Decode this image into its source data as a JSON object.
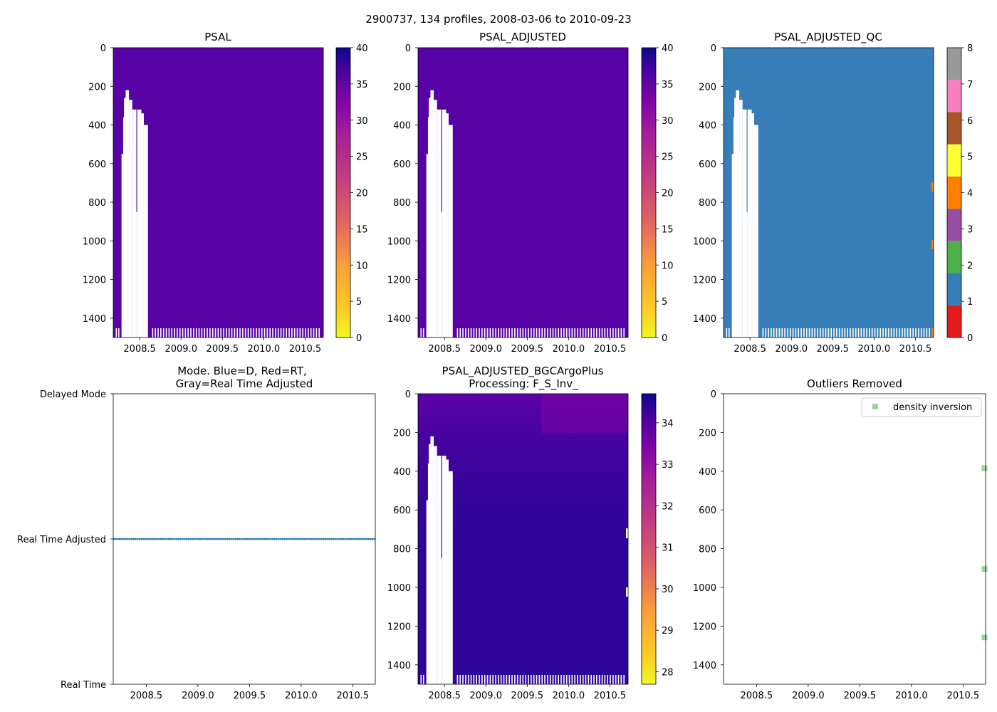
{
  "suptitle": "2900737, 134 profiles, 2008-03-06 to 2010-09-23",
  "chart_data": [
    {
      "id": "psal",
      "type": "heatmap",
      "title": "PSAL",
      "x_ticks": [
        "2008.5",
        "2009.0",
        "2009.5",
        "2010.0",
        "2010.5"
      ],
      "y_ticks": [
        "0",
        "200",
        "400",
        "600",
        "800",
        "1000",
        "1200",
        "1400"
      ],
      "colorbar": {
        "colormap": "plasma_r",
        "ticks": [
          "0",
          "5",
          "10",
          "15",
          "20",
          "25",
          "30",
          "35",
          "40"
        ],
        "vmin": 0,
        "vmax": 40
      },
      "dominant_value": 34.5
    },
    {
      "id": "psal_adjusted",
      "type": "heatmap",
      "title": "PSAL_ADJUSTED",
      "x_ticks": [
        "2008.5",
        "2009.0",
        "2009.5",
        "2010.0",
        "2010.5"
      ],
      "y_ticks": [
        "0",
        "200",
        "400",
        "600",
        "800",
        "1000",
        "1200",
        "1400"
      ],
      "colorbar": {
        "colormap": "plasma_r",
        "ticks": [
          "0",
          "5",
          "10",
          "15",
          "20",
          "25",
          "30",
          "35",
          "40"
        ],
        "vmin": 0,
        "vmax": 40
      },
      "dominant_value": 34.5
    },
    {
      "id": "psal_adjusted_qc",
      "type": "heatmap",
      "title": "PSAL_ADJUSTED_QC",
      "x_ticks": [
        "2008.5",
        "2009.0",
        "2009.5",
        "2010.0",
        "2010.5"
      ],
      "y_ticks": [
        "0",
        "200",
        "400",
        "600",
        "800",
        "1000",
        "1200",
        "1400"
      ],
      "colorbar": {
        "ticks": [
          "0",
          "1",
          "2",
          "3",
          "4",
          "5",
          "6",
          "7",
          "8"
        ],
        "segment_colors": [
          "#e41a1c",
          "#377eb8",
          "#4daf4a",
          "#984ea3",
          "#ff7f00",
          "#ffff33",
          "#a65628",
          "#f781bf",
          "#999999"
        ]
      },
      "dominant_value": 1
    },
    {
      "id": "mode",
      "type": "scatter",
      "title_line1": "Mode. Blue=D, Red=RT,",
      "title_line2": "Gray=Real Time Adjusted",
      "x_ticks": [
        "2008.5",
        "2009.0",
        "2009.5",
        "2010.0",
        "2010.5"
      ],
      "y_ticks": [
        "Delayed Mode",
        "Real Time Adjusted",
        "Real Time"
      ],
      "profile_count": 134,
      "series_value": "Real Time Adjusted",
      "series_color": "#1f77b4"
    },
    {
      "id": "bgc",
      "type": "heatmap",
      "title_line1": "PSAL_ADJUSTED_BGCArgoPlus",
      "title_line2": "Processing: F_S_Inv_",
      "x_ticks": [
        "2008.5",
        "2009.0",
        "2009.5",
        "2010.0",
        "2010.5"
      ],
      "y_ticks": [
        "0",
        "200",
        "400",
        "600",
        "800",
        "1000",
        "1200",
        "1400"
      ],
      "colorbar": {
        "colormap": "plasma_r",
        "ticks": [
          "28",
          "29",
          "30",
          "31",
          "32",
          "33",
          "34"
        ],
        "vmin": 27.7,
        "vmax": 34.7
      }
    },
    {
      "id": "outliers",
      "type": "scatter",
      "title": "Outliers Removed",
      "x_ticks": [
        "2008.5",
        "2009.0",
        "2009.5",
        "2010.0",
        "2010.5"
      ],
      "y_ticks": [
        "0",
        "200",
        "400",
        "600",
        "800",
        "1000",
        "1200",
        "1400"
      ],
      "legend": {
        "label": "density inversion",
        "color": "#7fc97f",
        "position": "top-right"
      },
      "points": [
        {
          "x": 2010.72,
          "y": 385
        },
        {
          "x": 2010.72,
          "y": 905
        },
        {
          "x": 2010.72,
          "y": 1258
        }
      ]
    }
  ]
}
